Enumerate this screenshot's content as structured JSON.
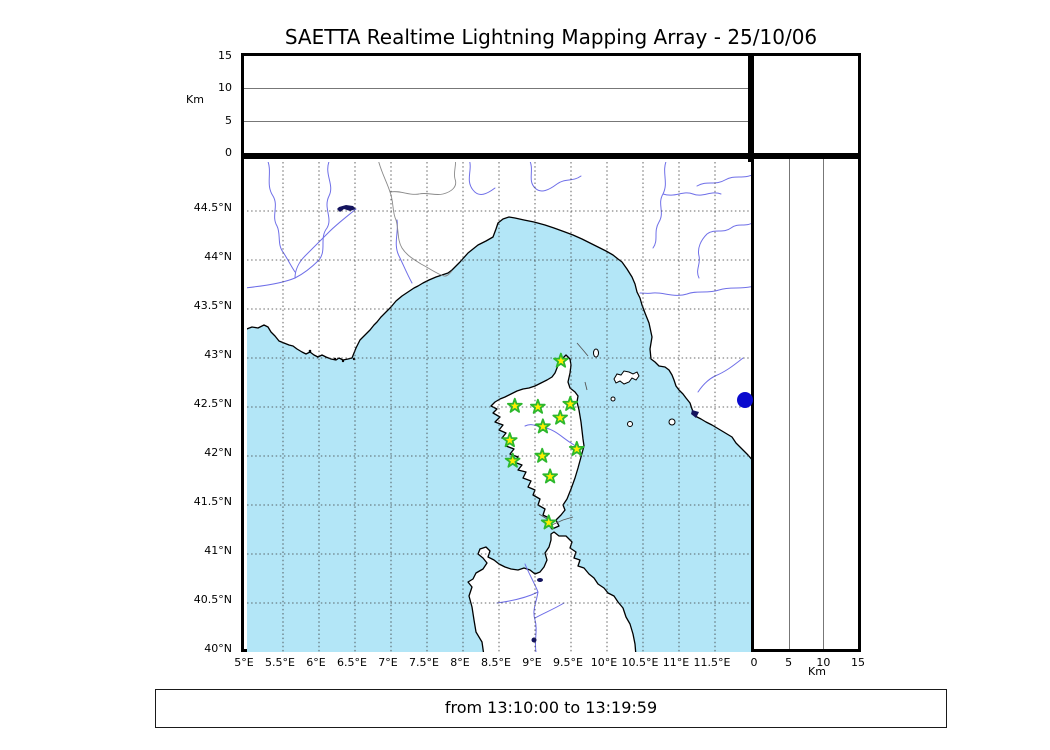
{
  "title": "SAETTA Realtime Lightning Mapping Array - 25/10/06",
  "footer": {
    "time_range": "from 13:10:00 to 13:19:59"
  },
  "colors": {
    "sea": "#b3e6f7",
    "land": "#ffffff",
    "coast": "#000000",
    "river": "#6f6fe8",
    "grid": "#3a3a3a",
    "country_border": "#8a8a8a",
    "star_fill": "#ffee00",
    "star_stroke": "#2db82d",
    "event_dot": "#0a0ace",
    "lake": "#14145e",
    "frame": "#000000"
  },
  "altitude_axis": {
    "unit": "Km",
    "range": [
      0,
      15
    ],
    "gridlines": [
      5,
      10
    ],
    "top_ticks": [
      {
        "v": 15,
        "label": "15"
      },
      {
        "v": 10,
        "label": "10"
      },
      {
        "v": 5,
        "label": "5"
      },
      {
        "v": 0,
        "label": "0"
      }
    ],
    "right_ticks": [
      {
        "v": 0,
        "label": "0"
      },
      {
        "v": 5,
        "label": "5"
      },
      {
        "v": 10,
        "label": "10"
      },
      {
        "v": 15,
        "label": "15"
      }
    ]
  },
  "map": {
    "lon_range": [
      5,
      12
    ],
    "lat_range": [
      40,
      45
    ],
    "grid_step": 0.5,
    "lon_ticks": [
      {
        "v": 5,
        "label": "5°E"
      },
      {
        "v": 5.5,
        "label": "5.5°E"
      },
      {
        "v": 6,
        "label": "6°E"
      },
      {
        "v": 6.5,
        "label": "6.5°E"
      },
      {
        "v": 7,
        "label": "7°E"
      },
      {
        "v": 7.5,
        "label": "7.5°E"
      },
      {
        "v": 8,
        "label": "8°E"
      },
      {
        "v": 8.5,
        "label": "8.5°E"
      },
      {
        "v": 9,
        "label": "9°E"
      },
      {
        "v": 9.5,
        "label": "9.5°E"
      },
      {
        "v": 10,
        "label": "10°E"
      },
      {
        "v": 10.5,
        "label": "10.5°E"
      },
      {
        "v": 11,
        "label": "11°E"
      },
      {
        "v": 11.5,
        "label": "11.5°E"
      }
    ],
    "lat_ticks": [
      {
        "v": 44.5,
        "label": "44.5°N"
      },
      {
        "v": 44,
        "label": "44°N"
      },
      {
        "v": 43.5,
        "label": "43.5°N"
      },
      {
        "v": 43,
        "label": "43°N"
      },
      {
        "v": 42.5,
        "label": "42.5°N"
      },
      {
        "v": 42,
        "label": "42°N"
      },
      {
        "v": 41.5,
        "label": "41.5°N"
      },
      {
        "v": 41,
        "label": "41°N"
      },
      {
        "v": 40.5,
        "label": "40.5°N"
      },
      {
        "v": 40,
        "label": "40°N"
      }
    ],
    "stations": [
      {
        "lon": 9.36,
        "lat": 42.97
      },
      {
        "lon": 8.72,
        "lat": 42.51
      },
      {
        "lon": 9.04,
        "lat": 42.5
      },
      {
        "lon": 9.49,
        "lat": 42.53
      },
      {
        "lon": 9.35,
        "lat": 42.39
      },
      {
        "lon": 9.11,
        "lat": 42.3
      },
      {
        "lon": 8.65,
        "lat": 42.16
      },
      {
        "lon": 9.58,
        "lat": 42.07
      },
      {
        "lon": 9.1,
        "lat": 42.0
      },
      {
        "lon": 8.69,
        "lat": 41.95
      },
      {
        "lon": 9.21,
        "lat": 41.79
      },
      {
        "lon": 9.19,
        "lat": 41.32
      }
    ],
    "event": {
      "lon": 11.96,
      "lat": 42.54
    }
  }
}
